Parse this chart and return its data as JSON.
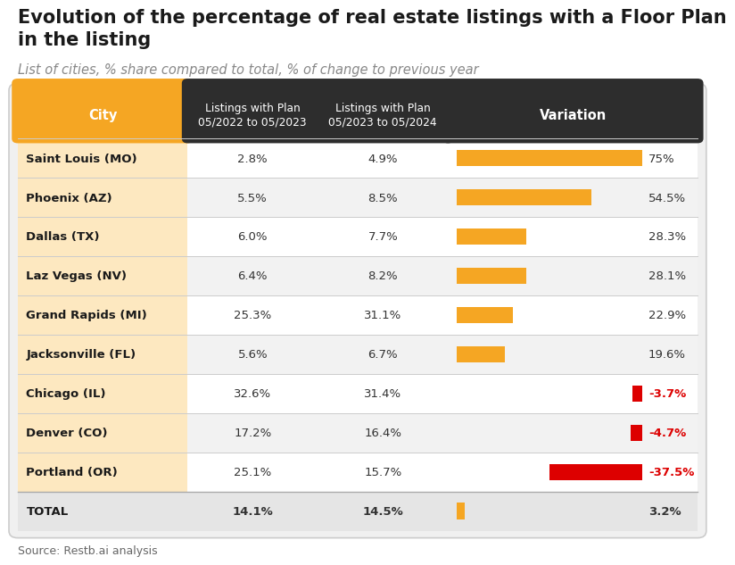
{
  "title": "Evolution of the percentage of real estate listings with a Floor Plan\nin the listing",
  "subtitle": "List of cities, % share compared to total, % of change to previous year",
  "source": "Source: Restb.ai analysis",
  "col_headers": [
    "City",
    "Listings with Plan\n05/2022 to 05/2023",
    "Listings with Plan\n05/2023 to 05/2024",
    "Variation"
  ],
  "cities": [
    "Saint Louis (MO)",
    "Phoenix (AZ)",
    "Dallas (TX)",
    "Laz Vegas (NV)",
    "Grand Rapids (MI)",
    "Jacksonville (FL)",
    "Chicago (IL)",
    "Denver (CO)",
    "Portland (OR)",
    "TOTAL"
  ],
  "val1": [
    "2.8%",
    "5.5%",
    "6.0%",
    "6.4%",
    "25.3%",
    "5.6%",
    "32.6%",
    "17.2%",
    "25.1%",
    "14.1%"
  ],
  "val2": [
    "4.9%",
    "8.5%",
    "7.7%",
    "8.2%",
    "31.1%",
    "6.7%",
    "31.4%",
    "16.4%",
    "15.7%",
    "14.5%"
  ],
  "variation_val": [
    75,
    54.5,
    28.3,
    28.1,
    22.9,
    19.6,
    -3.7,
    -4.7,
    -37.5,
    3.2
  ],
  "variation_label": [
    "75%",
    "54.5%",
    "28.3%",
    "28.1%",
    "22.9%",
    "19.6%",
    "-3.7%",
    "-4.7%",
    "-37.5%",
    "3.2%"
  ],
  "header_bg": "#2d2d2d",
  "city_header_bg": "#f5a623",
  "city_col_bg": "#fde8c0",
  "bar_positive": "#f5a623",
  "bar_negative": "#dd0000",
  "text_negative": "#dd0000",
  "title_fontsize": 15,
  "subtitle_fontsize": 10.5,
  "table_fontsize": 9.5
}
